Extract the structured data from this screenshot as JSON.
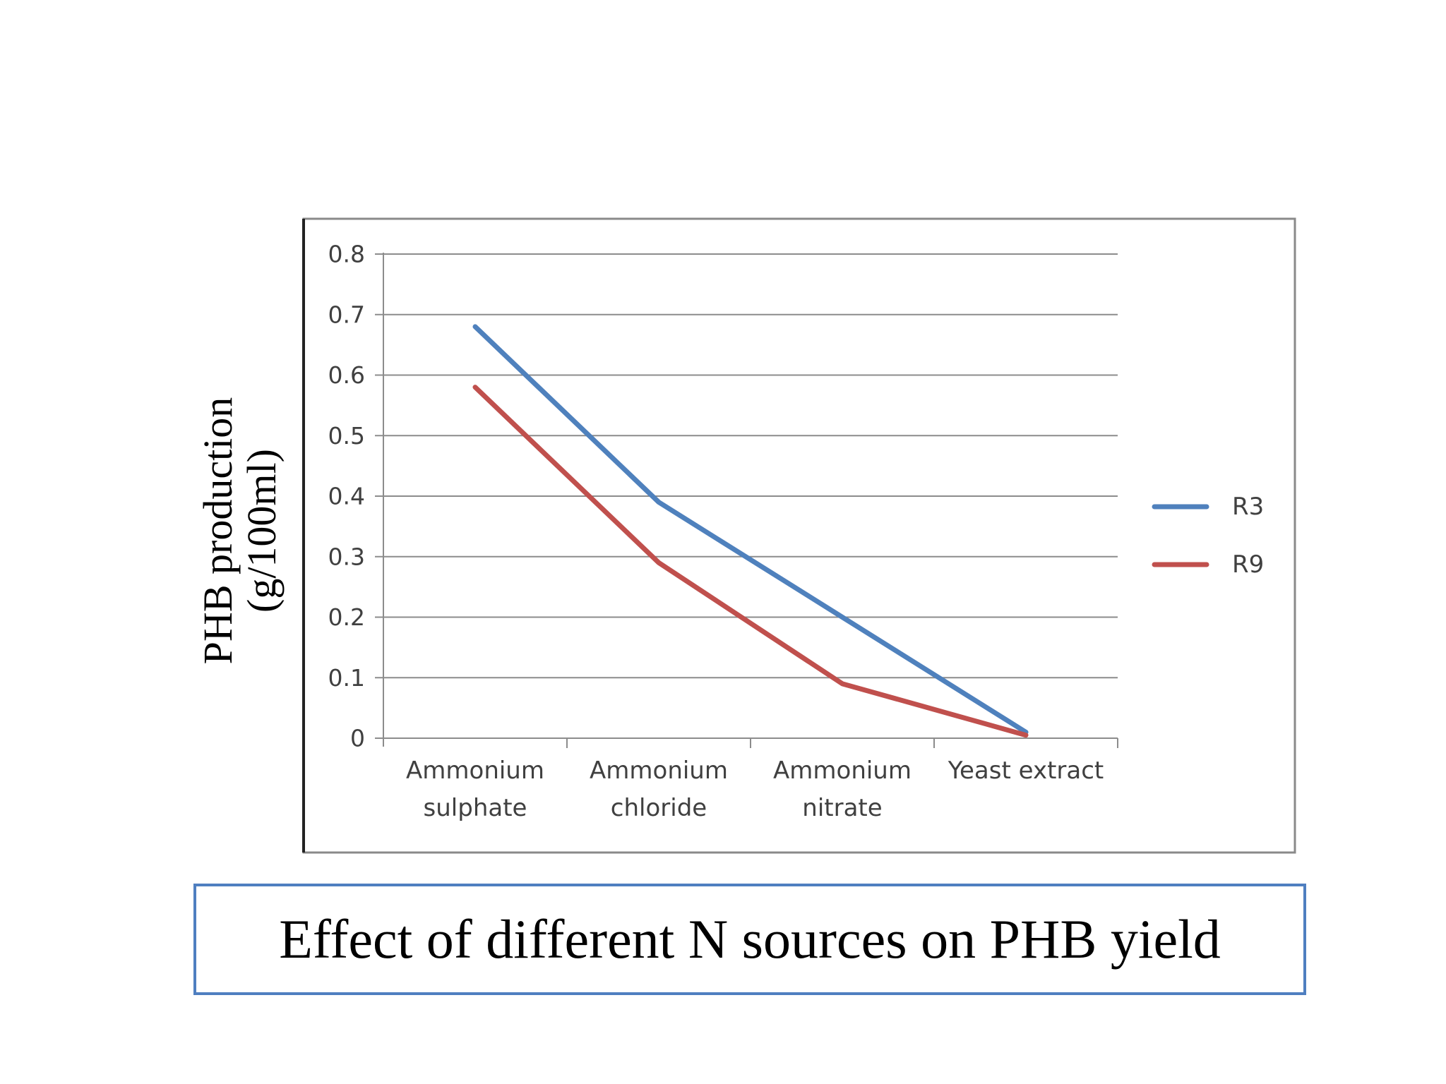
{
  "chart_data": {
    "type": "line",
    "ylabel_line1": "PHB production",
    "ylabel_line2": "(g/100ml)",
    "xlabel": "",
    "categories": [
      [
        "Ammonium",
        "sulphate"
      ],
      [
        "Ammonium",
        "chloride"
      ],
      [
        "Ammonium",
        "nitrate"
      ],
      [
        "Yeast extract"
      ]
    ],
    "ylim": [
      0,
      0.8
    ],
    "yticks": [
      "0",
      "0.1",
      "0.2",
      "0.3",
      "0.4",
      "0.5",
      "0.6",
      "0.7",
      "0.8"
    ],
    "grid": true,
    "legend_position": "right",
    "series": [
      {
        "name": "R3",
        "color": "#4f81bd",
        "values": [
          0.68,
          0.39,
          0.2,
          0.01
        ]
      },
      {
        "name": "R9",
        "color": "#c0504d",
        "values": [
          0.58,
          0.29,
          0.09,
          0.005
        ]
      }
    ]
  },
  "caption": "Effect of different N sources on PHB yield"
}
